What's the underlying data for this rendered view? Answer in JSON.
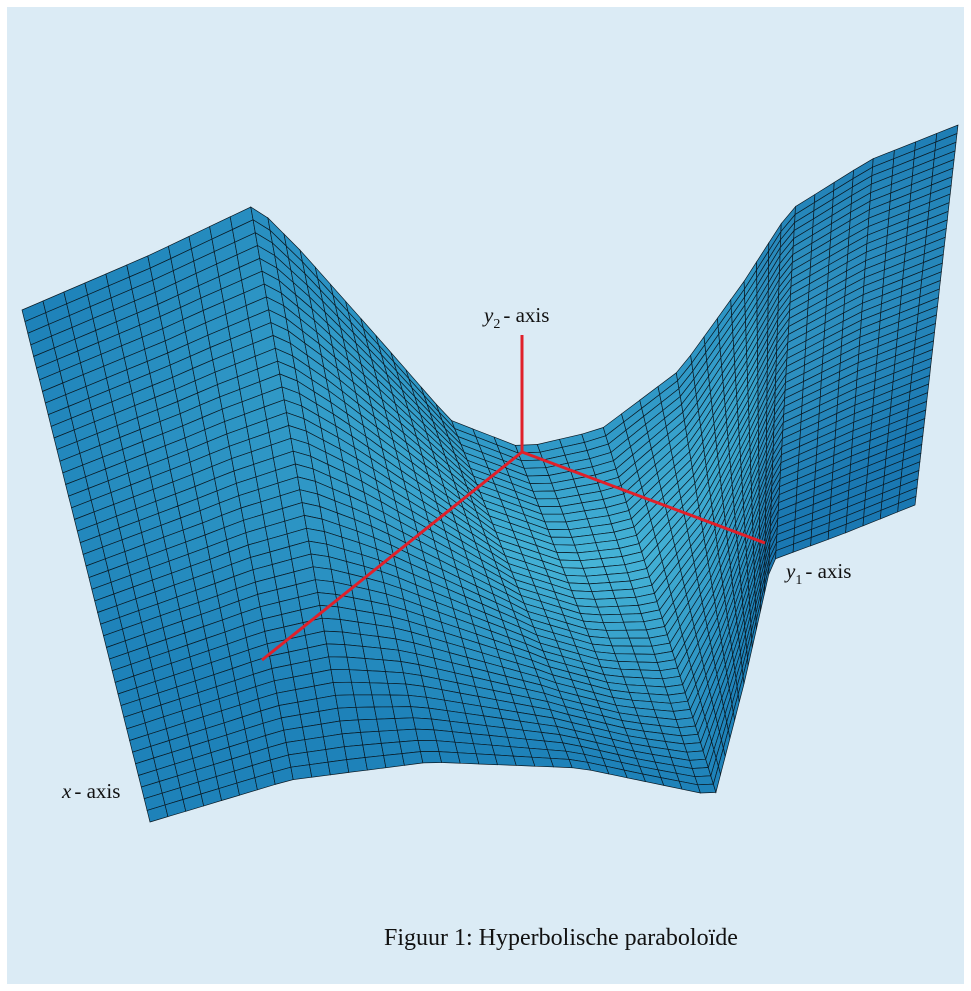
{
  "figure": {
    "labels": {
      "y2": {
        "variable": "y",
        "subscript": "2",
        "text": "- axis"
      },
      "y1": {
        "variable": "y",
        "subscript": "1",
        "text": "- axis"
      },
      "x": {
        "variable": "x",
        "text": "- axis"
      }
    },
    "caption": "Figuur 1: Hyperbolische paraboloïde"
  }
}
